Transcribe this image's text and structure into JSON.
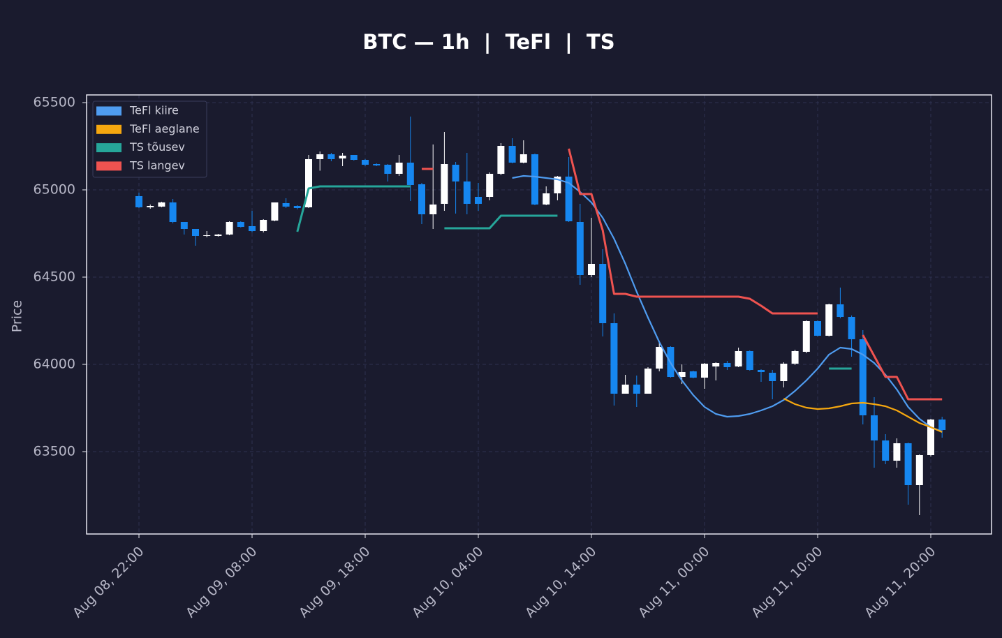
{
  "chart_data": {
    "type": "candlestick",
    "title": "BTC — 1h  |  TeFl  |  TS",
    "ylabel": "Price",
    "categories": [
      "Aug 08, 22:00",
      "Aug 08, 23:00",
      "Aug 09, 00:00",
      "Aug 09, 01:00",
      "Aug 09, 02:00",
      "Aug 09, 03:00",
      "Aug 09, 04:00",
      "Aug 09, 05:00",
      "Aug 09, 06:00",
      "Aug 09, 07:00",
      "Aug 09, 08:00",
      "Aug 09, 09:00",
      "Aug 09, 10:00",
      "Aug 09, 11:00",
      "Aug 09, 12:00",
      "Aug 09, 13:00",
      "Aug 09, 14:00",
      "Aug 09, 15:00",
      "Aug 09, 16:00",
      "Aug 09, 17:00",
      "Aug 09, 18:00",
      "Aug 09, 19:00",
      "Aug 09, 20:00",
      "Aug 09, 21:00",
      "Aug 09, 22:00",
      "Aug 09, 23:00",
      "Aug 10, 00:00",
      "Aug 10, 01:00",
      "Aug 10, 02:00",
      "Aug 10, 03:00",
      "Aug 10, 04:00",
      "Aug 10, 05:00",
      "Aug 10, 06:00",
      "Aug 10, 07:00",
      "Aug 10, 08:00",
      "Aug 10, 09:00",
      "Aug 10, 10:00",
      "Aug 10, 11:00",
      "Aug 10, 12:00",
      "Aug 10, 13:00",
      "Aug 10, 14:00",
      "Aug 10, 15:00",
      "Aug 10, 16:00",
      "Aug 10, 17:00",
      "Aug 10, 18:00",
      "Aug 10, 19:00",
      "Aug 10, 20:00",
      "Aug 10, 21:00",
      "Aug 10, 22:00",
      "Aug 10, 23:00",
      "Aug 11, 00:00",
      "Aug 11, 01:00",
      "Aug 11, 02:00",
      "Aug 11, 03:00",
      "Aug 11, 04:00",
      "Aug 11, 05:00",
      "Aug 11, 06:00",
      "Aug 11, 07:00",
      "Aug 11, 08:00",
      "Aug 11, 09:00",
      "Aug 11, 10:00",
      "Aug 11, 11:00",
      "Aug 11, 12:00",
      "Aug 11, 13:00",
      "Aug 11, 14:00",
      "Aug 11, 15:00",
      "Aug 11, 16:00",
      "Aug 11, 17:00",
      "Aug 11, 18:00",
      "Aug 11, 19:00",
      "Aug 11, 20:00",
      "Aug 11, 21:00"
    ],
    "open": [
      64964,
      64900,
      64904,
      64928,
      64816,
      64776,
      64736,
      64736,
      64744,
      64816,
      64792,
      64764,
      64824,
      64924,
      64908,
      64900,
      65176,
      65204,
      65180,
      65200,
      65172,
      65148,
      65144,
      65092,
      65156,
      65032,
      64860,
      64920,
      65144,
      65048,
      64960,
      64960,
      65092,
      65252,
      65156,
      65204,
      64916,
      64980,
      65076,
      64816,
      64512,
      64576,
      64236,
      63832,
      63884,
      63832,
      63976,
      64100,
      63928,
      63960,
      63924,
      63988,
      64008,
      63988,
      64076,
      63968,
      63952,
      63904,
      64004,
      64072,
      64248,
      64164,
      64344,
      64272,
      64144,
      63708,
      63564,
      63448,
      63548,
      63308,
      63480,
      63684
    ],
    "high": [
      64984,
      64916,
      64932,
      64948,
      64816,
      64776,
      64764,
      64748,
      64820,
      64820,
      64880,
      64832,
      64928,
      64952,
      64912,
      65200,
      65220,
      65212,
      65212,
      65200,
      65176,
      65152,
      65148,
      65200,
      65420,
      65040,
      65260,
      65332,
      65160,
      65212,
      65040,
      65100,
      65268,
      65296,
      65284,
      65208,
      65020,
      65080,
      65188,
      64920,
      64840,
      64660,
      64292,
      63940,
      63936,
      63984,
      64124,
      64104,
      64000,
      63964,
      64008,
      64012,
      64020,
      64096,
      64080,
      63972,
      63968,
      64012,
      64084,
      64252,
      64252,
      64348,
      64440,
      64280,
      64196,
      63812,
      63600,
      63576,
      63552,
      63484,
      63688,
      63700
    ],
    "low": [
      64896,
      64892,
      64900,
      64808,
      64744,
      64680,
      64728,
      64732,
      64740,
      64784,
      64756,
      64756,
      64820,
      64896,
      64888,
      64896,
      65110,
      65164,
      65136,
      65168,
      65136,
      65136,
      65048,
      65080,
      64936,
      64804,
      64776,
      64880,
      64864,
      64860,
      64880,
      64940,
      65084,
      65152,
      65152,
      64912,
      64912,
      64940,
      64816,
      64456,
      64500,
      64160,
      63764,
      63832,
      63756,
      63832,
      63960,
      63924,
      63888,
      63920,
      63860,
      63908,
      63968,
      63984,
      63964,
      63900,
      63800,
      63868,
      63996,
      64064,
      64160,
      64160,
      64264,
      64044,
      63656,
      63408,
      63428,
      63408,
      63196,
      63136,
      63472,
      63580
    ],
    "close": [
      64900,
      64908,
      64928,
      64816,
      64776,
      64736,
      64740,
      64744,
      64816,
      64788,
      64764,
      64828,
      64928,
      64904,
      64896,
      65176,
      65204,
      65176,
      65196,
      65172,
      65144,
      65140,
      65092,
      65156,
      65028,
      64860,
      64916,
      65148,
      65048,
      64920,
      64920,
      65092,
      65252,
      65156,
      65204,
      64916,
      64980,
      65076,
      64820,
      64512,
      64576,
      64236,
      63832,
      63884,
      63832,
      63976,
      64100,
      63928,
      63956,
      63924,
      64004,
      64008,
      63984,
      64076,
      63968,
      63956,
      63904,
      64004,
      64076,
      64248,
      64164,
      64344,
      64272,
      64144,
      63708,
      63564,
      63448,
      63548,
      63308,
      63480,
      63684,
      63624
    ],
    "up_color": "#ffffff",
    "down_color": "#1687f0",
    "series": [
      {
        "name": "TeFl kiire",
        "color": "#4f9cf0",
        "values": [
          null,
          null,
          null,
          null,
          null,
          null,
          null,
          null,
          null,
          null,
          null,
          null,
          null,
          null,
          null,
          null,
          null,
          null,
          null,
          null,
          null,
          null,
          null,
          null,
          null,
          null,
          null,
          null,
          null,
          null,
          null,
          null,
          null,
          65068,
          65080,
          65076,
          65068,
          65060,
          65040,
          64988,
          64928,
          64840,
          64720,
          64576,
          64416,
          64268,
          64128,
          64008,
          63908,
          63824,
          63756,
          63716,
          63700,
          63704,
          63716,
          63736,
          63760,
          63796,
          63848,
          63908,
          63976,
          64056,
          64096,
          64088,
          64056,
          64008,
          63940,
          63856,
          63756,
          63688,
          63640,
          63616
        ]
      },
      {
        "name": "TeFl aeglane",
        "color": "#f5a70f",
        "values": [
          null,
          null,
          null,
          null,
          null,
          null,
          null,
          null,
          null,
          null,
          null,
          null,
          null,
          null,
          null,
          null,
          null,
          null,
          null,
          null,
          null,
          null,
          null,
          null,
          null,
          null,
          null,
          null,
          null,
          null,
          null,
          null,
          null,
          null,
          null,
          null,
          null,
          null,
          null,
          null,
          null,
          null,
          null,
          null,
          null,
          null,
          null,
          null,
          null,
          null,
          null,
          null,
          null,
          null,
          null,
          null,
          null,
          63804,
          63772,
          63752,
          63744,
          63748,
          63760,
          63776,
          63780,
          63772,
          63760,
          63736,
          63700,
          63664,
          63640,
          63612
        ]
      },
      {
        "name": "TS tõusev",
        "color": "#26a69a",
        "values": [
          null,
          null,
          null,
          null,
          null,
          null,
          null,
          null,
          null,
          null,
          null,
          null,
          null,
          null,
          64760,
          65008,
          65020,
          65020,
          65020,
          65020,
          65020,
          65020,
          65020,
          65020,
          65020,
          null,
          null,
          64780,
          64780,
          64780,
          64780,
          64780,
          64852,
          64852,
          64852,
          64852,
          64852,
          64852,
          null,
          null,
          null,
          null,
          null,
          null,
          null,
          null,
          null,
          null,
          null,
          null,
          null,
          null,
          null,
          null,
          null,
          null,
          null,
          null,
          null,
          null,
          null,
          63976,
          63976,
          63976,
          null,
          null,
          null,
          null,
          null,
          null,
          null,
          null
        ]
      },
      {
        "name": "TS langev",
        "color": "#ef5350",
        "values": [
          null,
          null,
          null,
          null,
          null,
          null,
          null,
          null,
          null,
          null,
          null,
          null,
          null,
          null,
          null,
          null,
          null,
          null,
          null,
          null,
          null,
          null,
          null,
          null,
          null,
          65120,
          65120,
          null,
          null,
          null,
          null,
          null,
          null,
          null,
          null,
          null,
          null,
          null,
          65236,
          64976,
          64976,
          64768,
          64404,
          64404,
          64388,
          64388,
          64388,
          64388,
          64388,
          64388,
          64388,
          64388,
          64388,
          64388,
          64376,
          64336,
          64292,
          64292,
          64292,
          64292,
          64292,
          null,
          null,
          null,
          64168,
          64048,
          63928,
          63928,
          63800,
          63800,
          63800,
          63800
        ]
      }
    ],
    "ylim": [
      63028,
      65544
    ],
    "yticks": [
      63500,
      64000,
      64500,
      65000,
      65500
    ],
    "xticks": [
      "Aug 08, 22:00",
      "Aug 09, 08:00",
      "Aug 09, 18:00",
      "Aug 10, 04:00",
      "Aug 10, 14:00",
      "Aug 11, 00:00",
      "Aug 11, 10:00",
      "Aug 11, 20:00"
    ],
    "grid": true,
    "legend": "upper left"
  }
}
